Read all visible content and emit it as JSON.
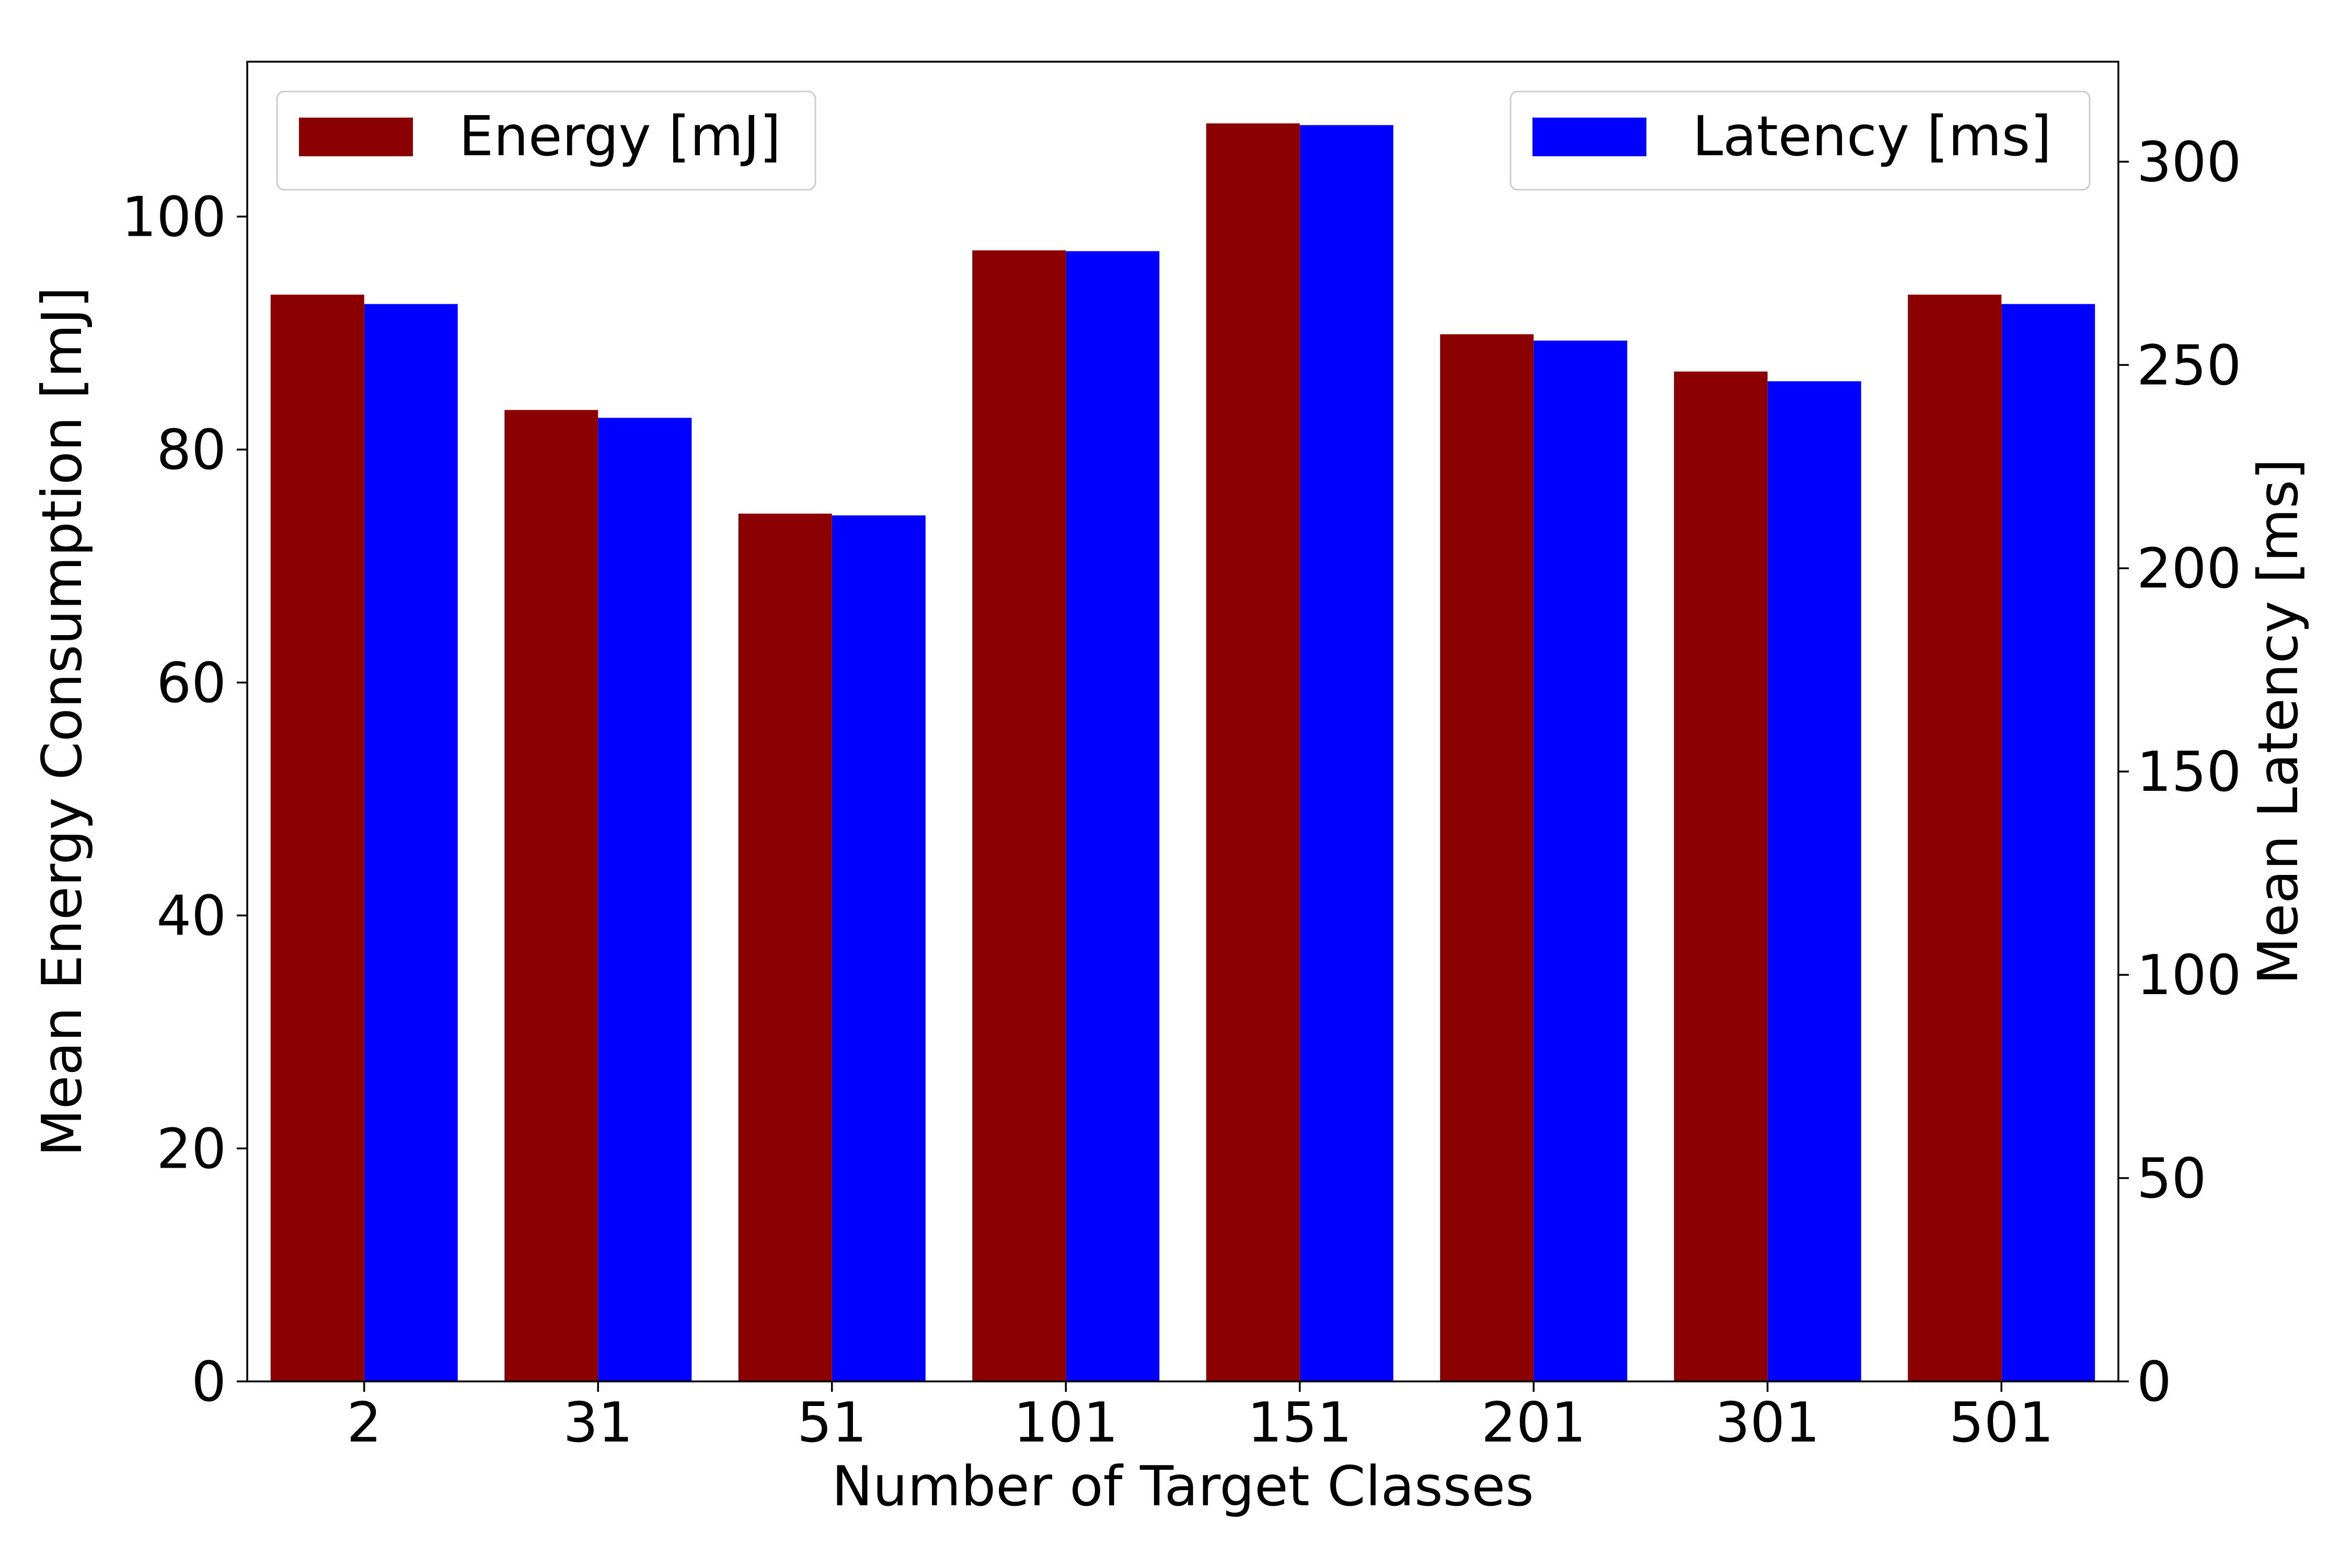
{
  "chart_data": {
    "type": "bar",
    "categories": [
      "2",
      "31",
      "51",
      "101",
      "151",
      "201",
      "301",
      "501"
    ],
    "series": [
      {
        "name": "Energy [mJ]",
        "axis": "left",
        "color": "#8B0000",
        "values": [
          93.3,
          83.4,
          74.5,
          97.1,
          108.0,
          89.9,
          86.7,
          93.3
        ]
      },
      {
        "name": "Latency [ms]",
        "axis": "right",
        "color": "#0000FF",
        "values": [
          265,
          237,
          213,
          278,
          309,
          256,
          246,
          265
        ]
      }
    ],
    "title": "",
    "xlabel": "Number of Target Classes",
    "ylabel": "Mean Energy Consumption [mJ]",
    "ylabel_right": "Mean Latency [ms]",
    "ylim": [
      0,
      113.3
    ],
    "ylim_right": [
      0,
      324.6
    ],
    "yticks": [
      "0",
      "20",
      "40",
      "60",
      "80",
      "100"
    ],
    "yticks_right": [
      "0",
      "50",
      "100",
      "150",
      "200",
      "250",
      "300"
    ],
    "grid": false,
    "legend_placement": [
      "top-left",
      "top-right"
    ]
  }
}
